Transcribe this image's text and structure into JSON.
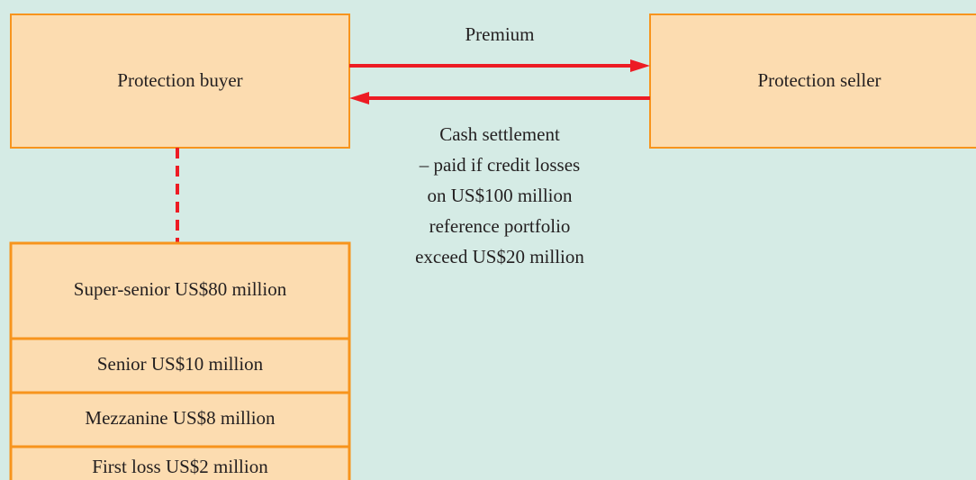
{
  "nodes": [
    {
      "label": "Protection buyer"
    },
    {
      "label": "Protection seller"
    }
  ],
  "edges": [
    {
      "label": "Premium"
    },
    {
      "label": [
        "Cash settlement",
        "– paid if credit losses",
        "on US$100 million",
        "reference portfolio",
        "exceed US$20 million"
      ]
    }
  ],
  "tranches": [
    "Super-senior US$80 million",
    "Senior US$10 million",
    "Mezzanine US$8 million",
    "First loss US$2 million"
  ]
}
